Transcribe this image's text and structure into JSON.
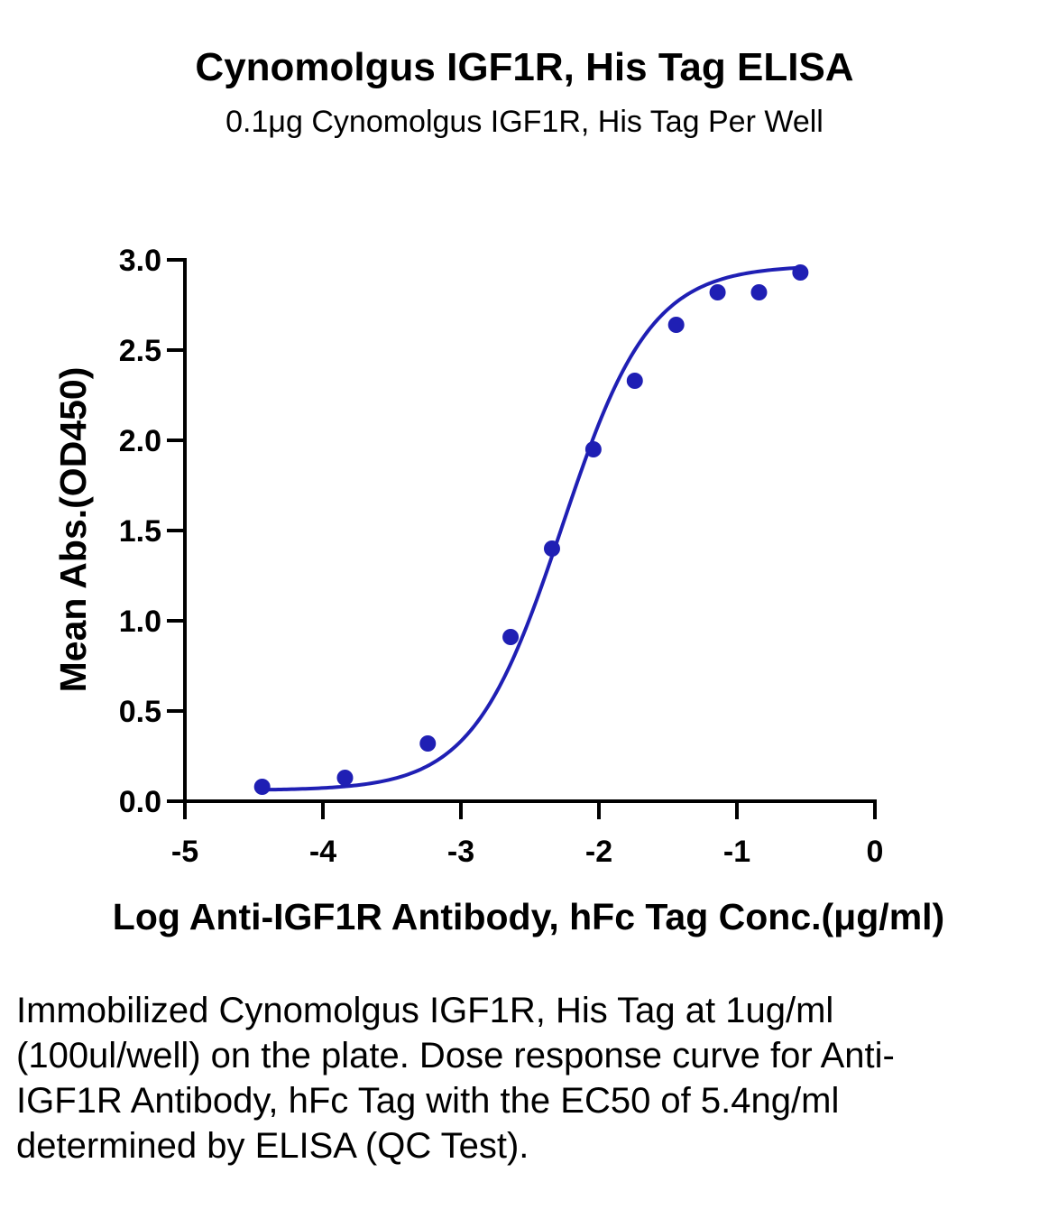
{
  "chart_data": {
    "type": "scatter",
    "title": "Cynomolgus IGF1R, His Tag ELISA",
    "subtitle": "0.1μg Cynomolgus IGF1R, His Tag Per Well",
    "xlabel": "Log Anti-IGF1R Antibody, hFc Tag Conc.(μg/ml)",
    "ylabel": "Mean Abs.(OD450)",
    "xlim": [
      -5,
      0
    ],
    "ylim": [
      0,
      3.0
    ],
    "x_ticks": [
      "-5",
      "-4",
      "-3",
      "-2",
      "-1",
      "0"
    ],
    "y_ticks": [
      "0.0",
      "0.5",
      "1.0",
      "1.5",
      "2.0",
      "2.5",
      "3.0"
    ],
    "grid": false,
    "color": "#1f1fb4",
    "series": [
      {
        "x": [
          -4.44,
          -3.84,
          -3.24,
          -2.64,
          -2.34,
          -2.04,
          -1.74,
          -1.44,
          -1.14,
          -0.84,
          -0.54
        ],
        "y": [
          0.08,
          0.13,
          0.32,
          0.91,
          1.4,
          1.95,
          2.33,
          2.64,
          2.82,
          2.82,
          2.93
        ]
      }
    ],
    "fit": {
      "type": "4PL",
      "bottom": 0.06,
      "top": 2.97,
      "log_ec50": -2.27,
      "hill": 1.35
    }
  },
  "caption": "Immobilized Cynomolgus IGF1R, His Tag at 1ug/ml (100ul/well) on the plate. Dose response curve for Anti-IGF1R Antibody, hFc Tag with the EC50 of 5.4ng/ml determined by ELISA (QC Test)."
}
